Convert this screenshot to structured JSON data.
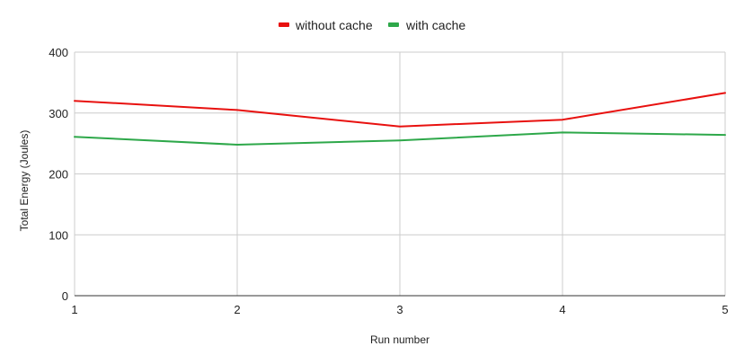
{
  "chart_data": {
    "type": "line",
    "title": "",
    "xlabel": "Run number",
    "ylabel": "Total Energy (Joules)",
    "x": [
      1,
      2,
      3,
      4,
      5
    ],
    "xlim": [
      1,
      5
    ],
    "ylim": [
      0,
      400
    ],
    "yticks": [
      0,
      100,
      200,
      300,
      400
    ],
    "grid": true,
    "legend_position": "top-center",
    "series": [
      {
        "name": "without cache",
        "color": "#e8110f",
        "values": [
          320,
          305,
          278,
          289,
          333
        ]
      },
      {
        "name": "with cache",
        "color": "#2ea84a",
        "values": [
          261,
          248,
          255,
          268,
          264
        ]
      }
    ]
  }
}
